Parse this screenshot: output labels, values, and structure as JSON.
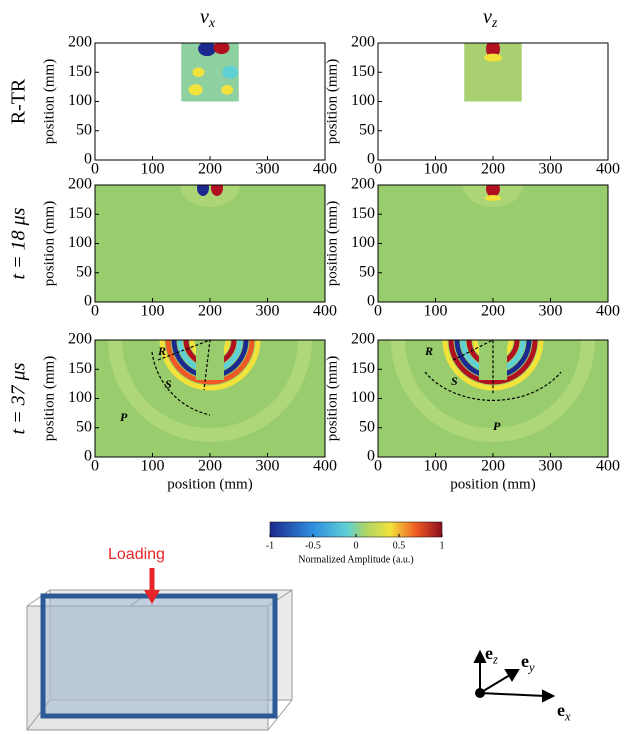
{
  "columns": [
    {
      "symbol": "v",
      "subscript": "x"
    },
    {
      "symbol": "v",
      "subscript": "z"
    }
  ],
  "rows": [
    "R-TR",
    "t = 18 μs",
    "t = 37 μs"
  ],
  "axes": {
    "xlim": [
      0,
      400
    ],
    "xticks": [
      0,
      100,
      200,
      300,
      400
    ],
    "ylim": [
      0,
      200
    ],
    "yticks": [
      0,
      50,
      100,
      150,
      200
    ],
    "ylabel": "position (mm)",
    "xlabel": "position (mm)"
  },
  "wave_labels": {
    "left": [
      "R",
      "S",
      "P"
    ],
    "right": [
      "R",
      "S",
      "P"
    ]
  },
  "colorbar": {
    "ticks": [
      -1,
      -0.5,
      0,
      0.5,
      1
    ],
    "label": "Normalized Amplitude (a.u.)"
  },
  "loading": "Loading",
  "basis": [
    {
      "base": "e",
      "subscript": "z"
    },
    {
      "base": "e",
      "subscript": "y"
    },
    {
      "base": "e",
      "subscript": "x"
    }
  ]
}
